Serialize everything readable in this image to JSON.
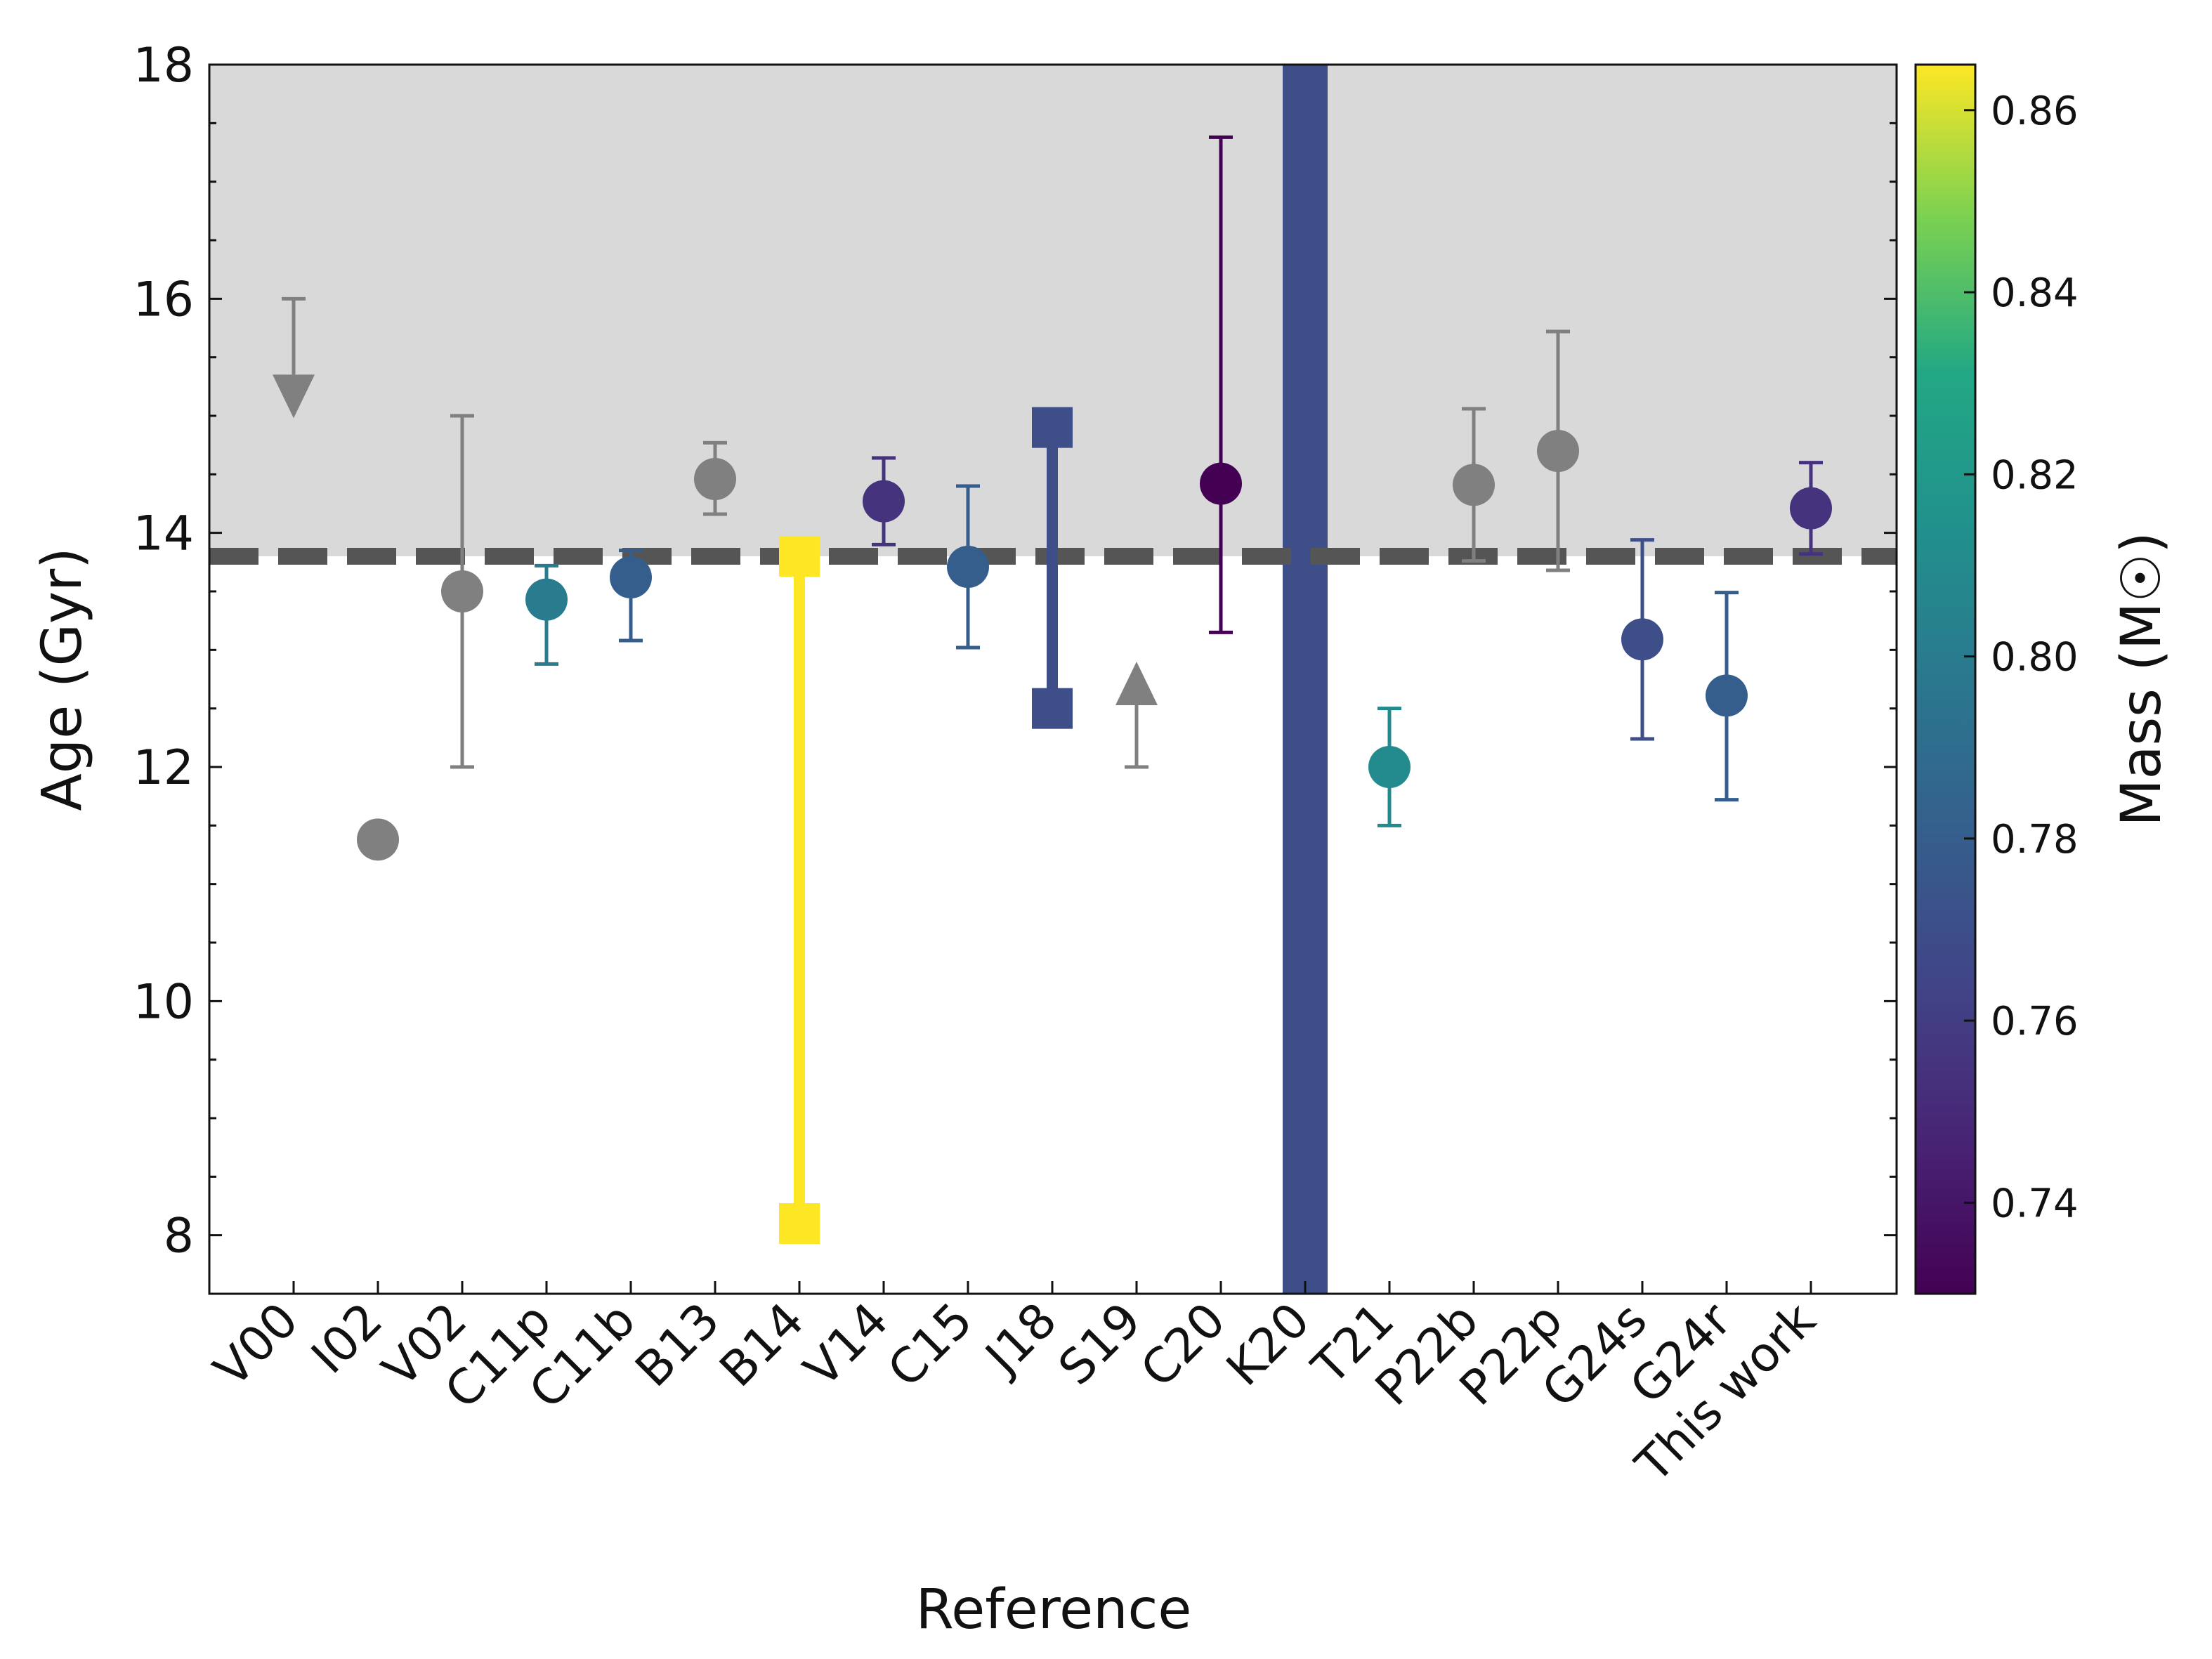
{
  "chart_data": {
    "type": "scatter",
    "title": "",
    "xlabel": "Reference",
    "ylabel": "Age (Gyr)",
    "ylim": [
      7.5,
      18
    ],
    "yticks": [
      8,
      10,
      12,
      14,
      16,
      18
    ],
    "yticks_text": [
      "8",
      "10",
      "12",
      "14",
      "16",
      "18"
    ],
    "grid": false,
    "reference_line": {
      "y": 13.8,
      "style": "dashed",
      "color": "#555555"
    },
    "shaded_region": {
      "y_from": 13.8,
      "y_to": 18,
      "color": "#d9d9d9"
    },
    "colorbar": {
      "label": "Mass (M☉)",
      "range": [
        0.73,
        0.865
      ],
      "ticks": [
        0.74,
        0.76,
        0.78,
        0.8,
        0.82,
        0.84,
        0.86
      ],
      "ticks_text": [
        "0.74",
        "0.76",
        "0.78",
        "0.80",
        "0.82",
        "0.84",
        "0.86"
      ],
      "colormap": "viridis"
    },
    "categories": [
      "V00",
      "I02",
      "V02",
      "C11p",
      "C11b",
      "B13",
      "B14",
      "V14",
      "C15",
      "J18",
      "S19",
      "C20",
      "K20",
      "T21",
      "P22b",
      "P22p",
      "G24s",
      "G24r",
      "This work"
    ],
    "points": [
      {
        "ref": "V00",
        "kind": "upper_limit",
        "y": 16.0,
        "mass": null
      },
      {
        "ref": "I02",
        "kind": "point",
        "y": 11.38,
        "err_low": null,
        "err_high": null,
        "mass": null
      },
      {
        "ref": "V02",
        "kind": "point",
        "y": 13.5,
        "err_low": 12.0,
        "err_high": 15.0,
        "mass": null
      },
      {
        "ref": "C11p",
        "kind": "point",
        "y": 13.43,
        "err_low": 12.88,
        "err_high": 13.72,
        "mass": 0.8
      },
      {
        "ref": "C11b",
        "kind": "point",
        "y": 13.62,
        "err_low": 13.08,
        "err_high": 13.85,
        "mass": 0.78
      },
      {
        "ref": "B13",
        "kind": "point",
        "y": 14.46,
        "err_low": 14.16,
        "err_high": 14.77,
        "mass": null
      },
      {
        "ref": "B14",
        "kind": "range",
        "y_low": 8.1,
        "y_high": 13.8,
        "mass": 0.865
      },
      {
        "ref": "V14",
        "kind": "point",
        "y": 14.27,
        "err_low": 13.9,
        "err_high": 14.64,
        "mass": 0.755
      },
      {
        "ref": "C15",
        "kind": "point",
        "y": 13.71,
        "err_low": 13.02,
        "err_high": 14.4,
        "mass": 0.78
      },
      {
        "ref": "J18",
        "kind": "range",
        "y_low": 12.5,
        "y_high": 14.9,
        "mass": 0.77
      },
      {
        "ref": "S19",
        "kind": "lower_limit",
        "y": 12.0,
        "mass": null
      },
      {
        "ref": "C20",
        "kind": "point",
        "y": 14.42,
        "err_low": 13.15,
        "err_high": 17.38,
        "mass": 0.73
      },
      {
        "ref": "K20",
        "kind": "band",
        "y_low": 7.5,
        "y_high": 18.0,
        "mass": 0.77
      },
      {
        "ref": "T21",
        "kind": "point",
        "y": 12.0,
        "err_low": 11.5,
        "err_high": 12.5,
        "mass": 0.81
      },
      {
        "ref": "P22b",
        "kind": "point",
        "y": 14.41,
        "err_low": 13.76,
        "err_high": 15.06,
        "mass": null
      },
      {
        "ref": "P22p",
        "kind": "point",
        "y": 14.7,
        "err_low": 13.68,
        "err_high": 15.72,
        "mass": null
      },
      {
        "ref": "G24s",
        "kind": "point",
        "y": 13.09,
        "err_low": 12.24,
        "err_high": 13.94,
        "mass": 0.77
      },
      {
        "ref": "G24r",
        "kind": "point",
        "y": 12.61,
        "err_low": 11.72,
        "err_high": 13.49,
        "mass": 0.78
      },
      {
        "ref": "This work",
        "kind": "point",
        "y": 14.21,
        "err_low": 13.82,
        "err_high": 14.6,
        "mass": 0.755
      }
    ]
  },
  "colors": {
    "no_mass": "#808080",
    "reference_line": "#555555",
    "shade": "#d9d9d9"
  }
}
